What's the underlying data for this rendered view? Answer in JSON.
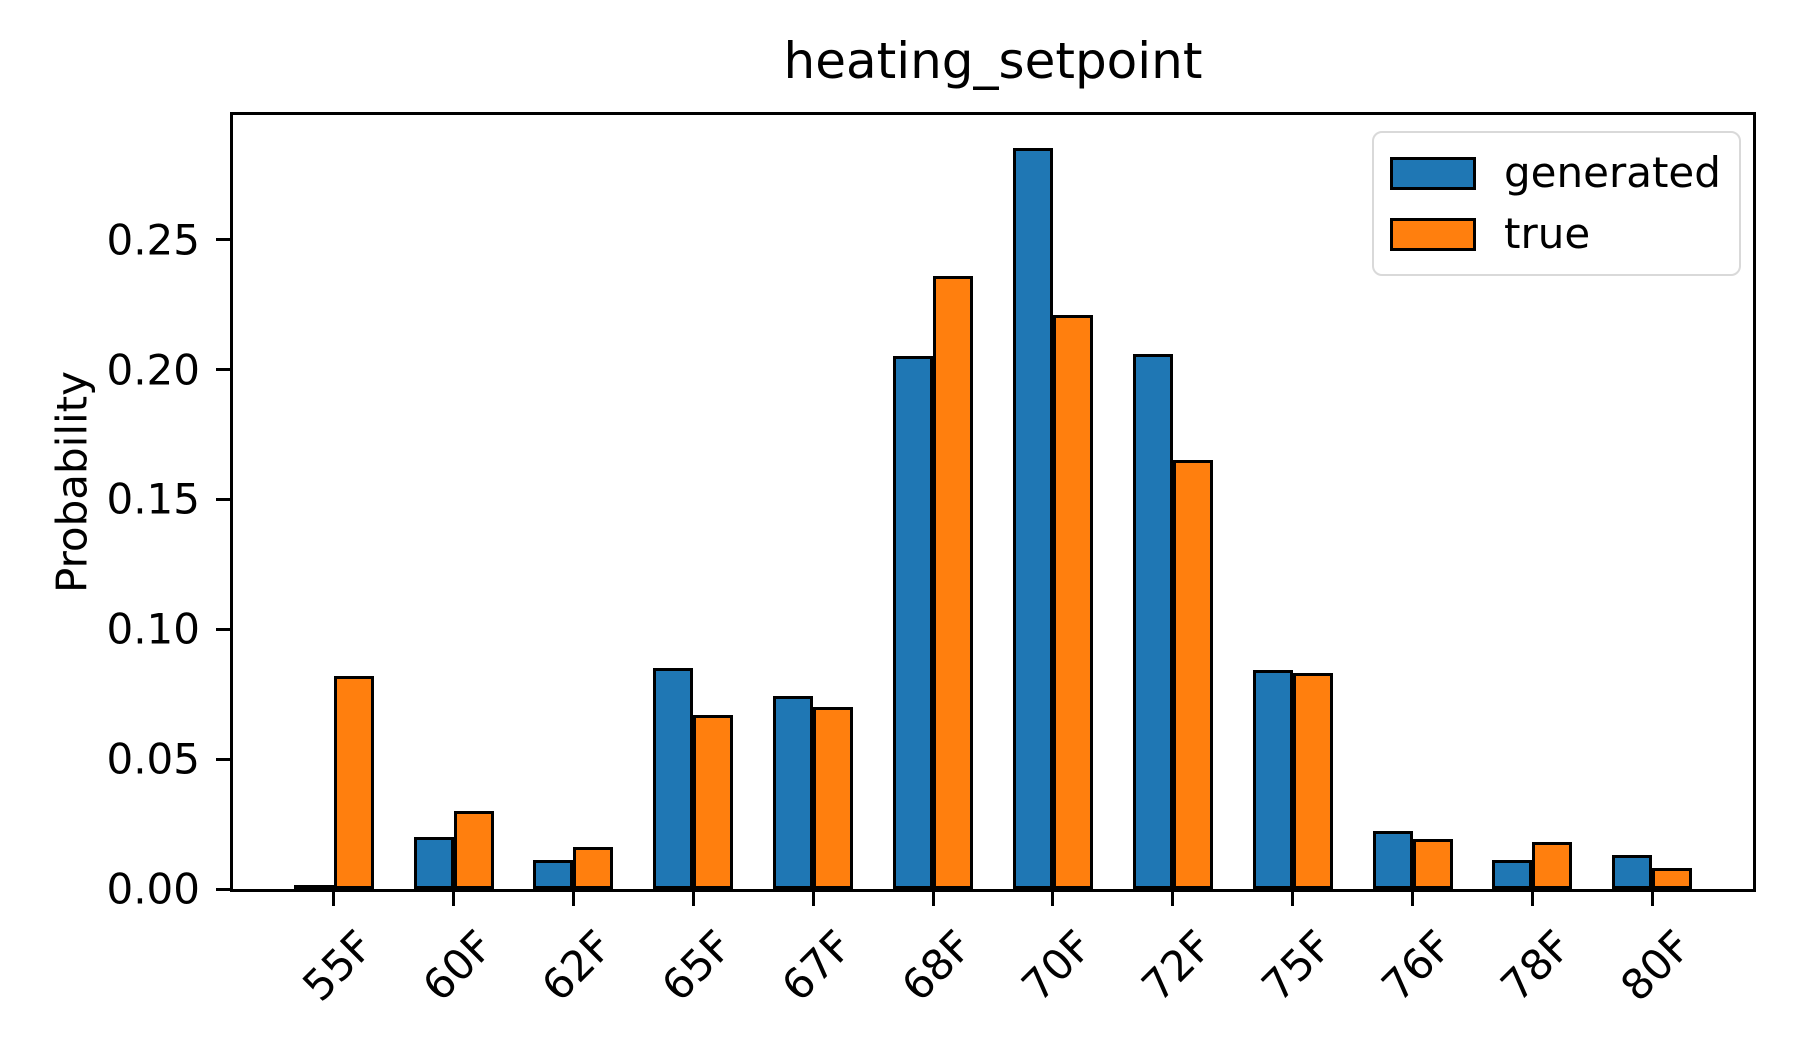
{
  "chart_data": {
    "type": "bar",
    "title": "heating_setpoint",
    "xlabel": "",
    "ylabel": "Probability",
    "categories": [
      "55F",
      "60F",
      "62F",
      "65F",
      "67F",
      "68F",
      "70F",
      "72F",
      "75F",
      "76F",
      "78F",
      "80F"
    ],
    "series": [
      {
        "name": "generated",
        "color": "#1f77b4",
        "values": [
          0.0005,
          0.019,
          0.01,
          0.084,
          0.073,
          0.204,
          0.284,
          0.205,
          0.083,
          0.021,
          0.01,
          0.012
        ]
      },
      {
        "name": "true",
        "color": "#ff7f0e",
        "values": [
          0.081,
          0.029,
          0.015,
          0.066,
          0.069,
          0.235,
          0.22,
          0.164,
          0.082,
          0.018,
          0.017,
          0.007
        ]
      }
    ],
    "ylim": [
      0,
      0.298
    ],
    "yticks": [
      0.0,
      0.05,
      0.1,
      0.15,
      0.2,
      0.25
    ],
    "y_tick_format": "0.00",
    "x_tick_rotation_deg": 45,
    "grid": false,
    "bar_edge_color": "#000000",
    "axis_color": "#000000",
    "legend_position": "upper right",
    "legend_border_color": "#d9d9d9"
  }
}
